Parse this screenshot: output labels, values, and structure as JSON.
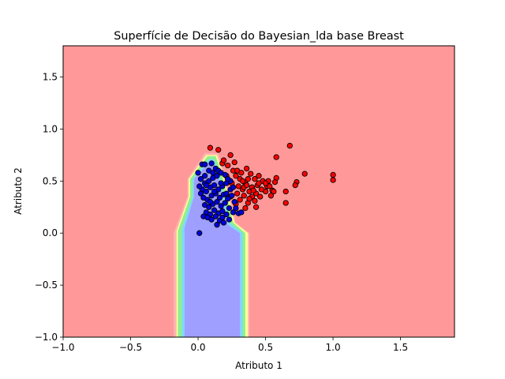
{
  "chart_data": {
    "type": "scatter",
    "title": "Superfície de Decisão do Bayesian_lda base Breast",
    "xlabel": "Atributo 1",
    "ylabel": "Atributo 2",
    "xlim": [
      -1.0,
      1.9
    ],
    "ylim": [
      -1.0,
      1.8
    ],
    "xticks": [
      -1.0,
      -0.5,
      0.0,
      0.5,
      1.0,
      1.5
    ],
    "xtick_labels": [
      "−1.0",
      "−0.5",
      "0.0",
      "0.5",
      "1.0",
      "1.5"
    ],
    "yticks": [
      -1.0,
      -0.5,
      0.0,
      0.5,
      1.0,
      1.5
    ],
    "ytick_labels": [
      "−1.0",
      "−0.5",
      "0.0",
      "0.5",
      "1.0",
      "1.5"
    ],
    "grid": false,
    "legend": "none",
    "decision_regions": [
      {
        "class": "background",
        "color": "#ff9999",
        "polygon": [
          [
            -1.0,
            -1.0
          ],
          [
            1.9,
            -1.0
          ],
          [
            1.9,
            1.8
          ],
          [
            -1.0,
            1.8
          ]
        ]
      },
      {
        "class": "boundary-outer",
        "color": "#ffb3b3",
        "polygon": [
          [
            -0.18,
            -1.0
          ],
          [
            0.38,
            -1.0
          ],
          [
            0.38,
            0.0
          ],
          [
            0.28,
            0.1
          ],
          [
            0.2,
            0.55
          ],
          [
            0.15,
            0.77
          ],
          [
            0.05,
            0.77
          ],
          [
            -0.08,
            0.52
          ],
          [
            -0.08,
            0.35
          ],
          [
            -0.18,
            0.0
          ]
        ]
      },
      {
        "class": "boundary-yellow",
        "color": "#ffff99",
        "polygon": [
          [
            -0.16,
            -1.0
          ],
          [
            0.37,
            -1.0
          ],
          [
            0.37,
            0.0
          ],
          [
            0.27,
            0.1
          ],
          [
            0.19,
            0.55
          ],
          [
            0.14,
            0.75
          ],
          [
            0.06,
            0.75
          ],
          [
            -0.07,
            0.52
          ],
          [
            -0.07,
            0.35
          ],
          [
            -0.16,
            0.02
          ]
        ]
      },
      {
        "class": "boundary-green",
        "color": "#8fef8f",
        "polygon": [
          [
            -0.15,
            -1.0
          ],
          [
            0.35,
            -1.0
          ],
          [
            0.35,
            0.0
          ],
          [
            0.26,
            0.1
          ],
          [
            0.18,
            0.55
          ],
          [
            0.13,
            0.74
          ],
          [
            0.07,
            0.74
          ],
          [
            -0.06,
            0.52
          ],
          [
            -0.06,
            0.35
          ],
          [
            -0.15,
            0.02
          ]
        ]
      },
      {
        "class": "boundary-cyan",
        "color": "#7fd8ff",
        "polygon": [
          [
            -0.12,
            -1.0
          ],
          [
            0.33,
            -1.0
          ],
          [
            0.33,
            0.0
          ],
          [
            0.24,
            0.09
          ],
          [
            0.16,
            0.55
          ],
          [
            0.12,
            0.71
          ],
          [
            0.08,
            0.71
          ],
          [
            -0.04,
            0.52
          ],
          [
            -0.04,
            0.35
          ],
          [
            -0.12,
            0.04
          ]
        ]
      },
      {
        "class": "benign-region",
        "color": "#9f9fff",
        "polygon": [
          [
            -0.1,
            -1.0
          ],
          [
            0.31,
            -1.0
          ],
          [
            0.31,
            0.0
          ],
          [
            0.22,
            0.08
          ],
          [
            0.15,
            0.55
          ],
          [
            0.11,
            0.69
          ],
          [
            0.09,
            0.69
          ],
          [
            -0.03,
            0.52
          ],
          [
            -0.03,
            0.35
          ],
          [
            -0.1,
            0.05
          ]
        ]
      }
    ],
    "series": [
      {
        "color": "#ff0000",
        "points": [
          [
            0.09,
            0.82
          ],
          [
            0.15,
            0.8
          ],
          [
            0.24,
            0.75
          ],
          [
            0.68,
            0.84
          ],
          [
            0.58,
            0.73
          ],
          [
            0.79,
            0.57
          ],
          [
            1.0,
            0.56
          ],
          [
            1.0,
            0.51
          ],
          [
            0.73,
            0.49
          ],
          [
            0.72,
            0.46
          ],
          [
            0.58,
            0.53
          ],
          [
            0.57,
            0.49
          ],
          [
            0.65,
            0.4
          ],
          [
            0.65,
            0.29
          ],
          [
            0.55,
            0.41
          ],
          [
            0.5,
            0.4
          ],
          [
            0.51,
            0.45
          ],
          [
            0.52,
            0.5
          ],
          [
            0.45,
            0.55
          ],
          [
            0.44,
            0.46
          ],
          [
            0.42,
            0.52
          ],
          [
            0.39,
            0.57
          ],
          [
            0.36,
            0.62
          ],
          [
            0.35,
            0.48
          ],
          [
            0.33,
            0.42
          ],
          [
            0.3,
            0.45
          ],
          [
            0.28,
            0.55
          ],
          [
            0.26,
            0.6
          ],
          [
            0.22,
            0.65
          ],
          [
            0.18,
            0.67
          ],
          [
            0.19,
            0.7
          ],
          [
            0.27,
            0.68
          ],
          [
            0.29,
            0.6
          ],
          [
            0.31,
            0.52
          ],
          [
            0.33,
            0.5
          ],
          [
            0.34,
            0.36
          ],
          [
            0.31,
            0.32
          ],
          [
            0.28,
            0.28
          ],
          [
            0.38,
            0.4
          ],
          [
            0.4,
            0.35
          ],
          [
            0.43,
            0.38
          ],
          [
            0.47,
            0.42
          ],
          [
            0.46,
            0.35
          ],
          [
            0.37,
            0.29
          ],
          [
            0.42,
            0.31
          ],
          [
            0.35,
            0.24
          ],
          [
            0.4,
            0.44
          ],
          [
            0.48,
            0.5
          ],
          [
            0.53,
            0.45
          ],
          [
            0.56,
            0.4
          ],
          [
            0.41,
            0.41
          ],
          [
            0.37,
            0.52
          ],
          [
            0.32,
            0.58
          ],
          [
            0.25,
            0.48
          ],
          [
            0.24,
            0.35
          ],
          [
            0.43,
            0.25
          ],
          [
            0.38,
            0.33
          ],
          [
            0.5,
            0.48
          ],
          [
            0.54,
            0.36
          ],
          [
            0.29,
            0.38
          ],
          [
            0.34,
            0.44
          ],
          [
            0.45,
            0.48
          ],
          [
            0.21,
            0.55
          ],
          [
            0.36,
            0.46
          ]
        ]
      },
      {
        "color": "#0000dd",
        "points": [
          [
            0.01,
            0.0
          ],
          [
            0.0,
            0.58
          ],
          [
            0.03,
            0.66
          ],
          [
            0.05,
            0.66
          ],
          [
            0.08,
            0.6
          ],
          [
            0.1,
            0.67
          ],
          [
            0.13,
            0.62
          ],
          [
            0.15,
            0.6
          ],
          [
            0.02,
            0.52
          ],
          [
            0.05,
            0.48
          ],
          [
            0.08,
            0.5
          ],
          [
            0.11,
            0.53
          ],
          [
            0.14,
            0.55
          ],
          [
            0.17,
            0.58
          ],
          [
            0.2,
            0.56
          ],
          [
            0.03,
            0.42
          ],
          [
            0.06,
            0.4
          ],
          [
            0.09,
            0.44
          ],
          [
            0.12,
            0.46
          ],
          [
            0.15,
            0.42
          ],
          [
            0.18,
            0.45
          ],
          [
            0.21,
            0.48
          ],
          [
            0.24,
            0.42
          ],
          [
            0.04,
            0.34
          ],
          [
            0.07,
            0.32
          ],
          [
            0.1,
            0.36
          ],
          [
            0.13,
            0.38
          ],
          [
            0.16,
            0.34
          ],
          [
            0.19,
            0.37
          ],
          [
            0.22,
            0.33
          ],
          [
            0.25,
            0.36
          ],
          [
            0.05,
            0.27
          ],
          [
            0.08,
            0.25
          ],
          [
            0.11,
            0.28
          ],
          [
            0.14,
            0.3
          ],
          [
            0.17,
            0.26
          ],
          [
            0.2,
            0.29
          ],
          [
            0.23,
            0.24
          ],
          [
            0.06,
            0.2
          ],
          [
            0.09,
            0.18
          ],
          [
            0.12,
            0.22
          ],
          [
            0.15,
            0.19
          ],
          [
            0.18,
            0.21
          ],
          [
            0.21,
            0.18
          ],
          [
            0.04,
            0.16
          ],
          [
            0.07,
            0.15
          ],
          [
            0.1,
            0.13
          ],
          [
            0.13,
            0.16
          ],
          [
            0.16,
            0.12
          ],
          [
            0.19,
            0.1
          ],
          [
            0.23,
            0.13
          ],
          [
            0.26,
            0.2
          ],
          [
            0.28,
            0.24
          ],
          [
            0.3,
            0.19
          ],
          [
            0.32,
            0.2
          ],
          [
            0.27,
            0.3
          ],
          [
            0.24,
            0.5
          ],
          [
            0.26,
            0.44
          ],
          [
            0.01,
            0.45
          ],
          [
            0.02,
            0.38
          ],
          [
            0.05,
            0.55
          ],
          [
            0.12,
            0.4
          ],
          [
            0.17,
            0.48
          ],
          [
            0.09,
            0.3
          ],
          [
            0.14,
            0.08
          ],
          [
            0.21,
            0.38
          ],
          [
            0.06,
            0.46
          ],
          [
            0.18,
            0.15
          ],
          [
            0.11,
            0.58
          ],
          [
            0.22,
            0.52
          ]
        ]
      }
    ]
  }
}
